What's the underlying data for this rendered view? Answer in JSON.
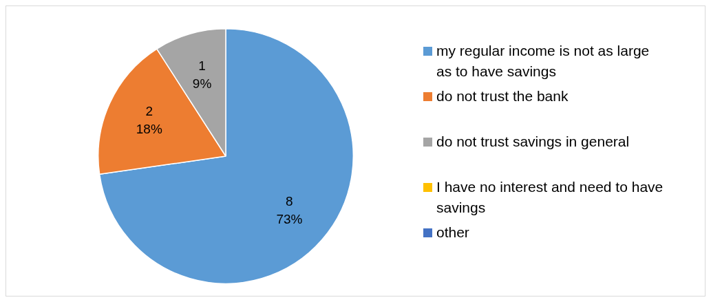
{
  "chart_data": {
    "type": "pie",
    "categories": [
      "my regular income is not as large as to have savings",
      "do not trust the bank",
      "do not trust savings in general",
      "I have no interest and need to have savings",
      "other"
    ],
    "values": [
      8,
      2,
      1,
      0,
      0
    ],
    "colors": [
      "#5b9bd5",
      "#ed7d31",
      "#a5a5a5",
      "#ffc000",
      "#4472c4"
    ],
    "value_labels": [
      "8\n73%",
      "2\n18%",
      "1\n9%",
      null,
      null
    ],
    "legend": "right"
  }
}
